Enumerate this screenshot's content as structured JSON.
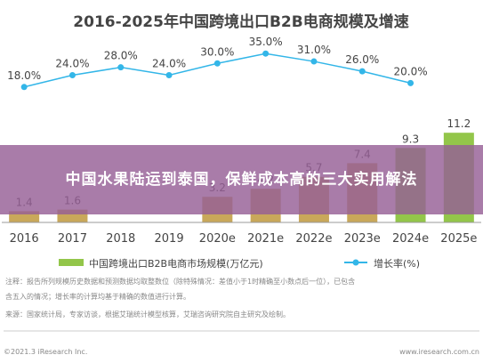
{
  "chart_data": {
    "type": "bar",
    "title": "2016-2025年中国跨境出口B2B电商规模及增速",
    "categories": [
      "2016",
      "2017",
      "2018",
      "2019",
      "2020e",
      "2021e",
      "2022e",
      "2023e",
      "2024e",
      "2025e"
    ],
    "series": [
      {
        "name": "中国跨境出口B2B电商市场规模(万亿元)",
        "type": "bar",
        "values": [
          1.4,
          1.6,
          null,
          null,
          3.2,
          4.2,
          5.7,
          7.4,
          9.3,
          11.2
        ]
      },
      {
        "name": "增长率(%)",
        "type": "line",
        "values": [
          18.0,
          24.0,
          28.0,
          24.0,
          30.0,
          35.0,
          31.0,
          26.0,
          20.0,
          null
        ]
      }
    ],
    "bar_labels": [
      "1.4",
      "1.6",
      "",
      "",
      "3.2",
      "4.2",
      "5.7",
      "7.4",
      "9.3",
      "11.2"
    ],
    "line_labels": [
      "18.0%",
      "24.0%",
      "28.0%",
      "24.0%",
      "30.0%",
      "35.0%",
      "31.0%",
      "26.0%",
      "20.0%",
      ""
    ],
    "bar_ylim": [
      0,
      12
    ],
    "line_ylim": [
      0,
      40
    ],
    "legend_position": "bottom",
    "grid": false,
    "notes": [
      "注释：报告所列规模历史数据和预测数据均取整数位（除特殊情况：差值小于1时精确至小数点后一位），已包含",
      "含五入的情况；增长率的计算均基于精确的数值进行计算。",
      "来源：国家统计局，专家访谈，根据艾瑞统计模型核算，艾瑞咨询研究院自主研究及绘制。"
    ],
    "footer_left": "©2021.3 iResearch Inc.",
    "footer_right": "www.iresearch.com.cn"
  },
  "colors": {
    "bar_light": "#c9a85a",
    "bar_green": "#93c64a",
    "line": "#33b6e8",
    "text": "#444444"
  },
  "overlay": {
    "title": "中国水果陆运到泰国，保鲜成本高的三大实用解法"
  }
}
